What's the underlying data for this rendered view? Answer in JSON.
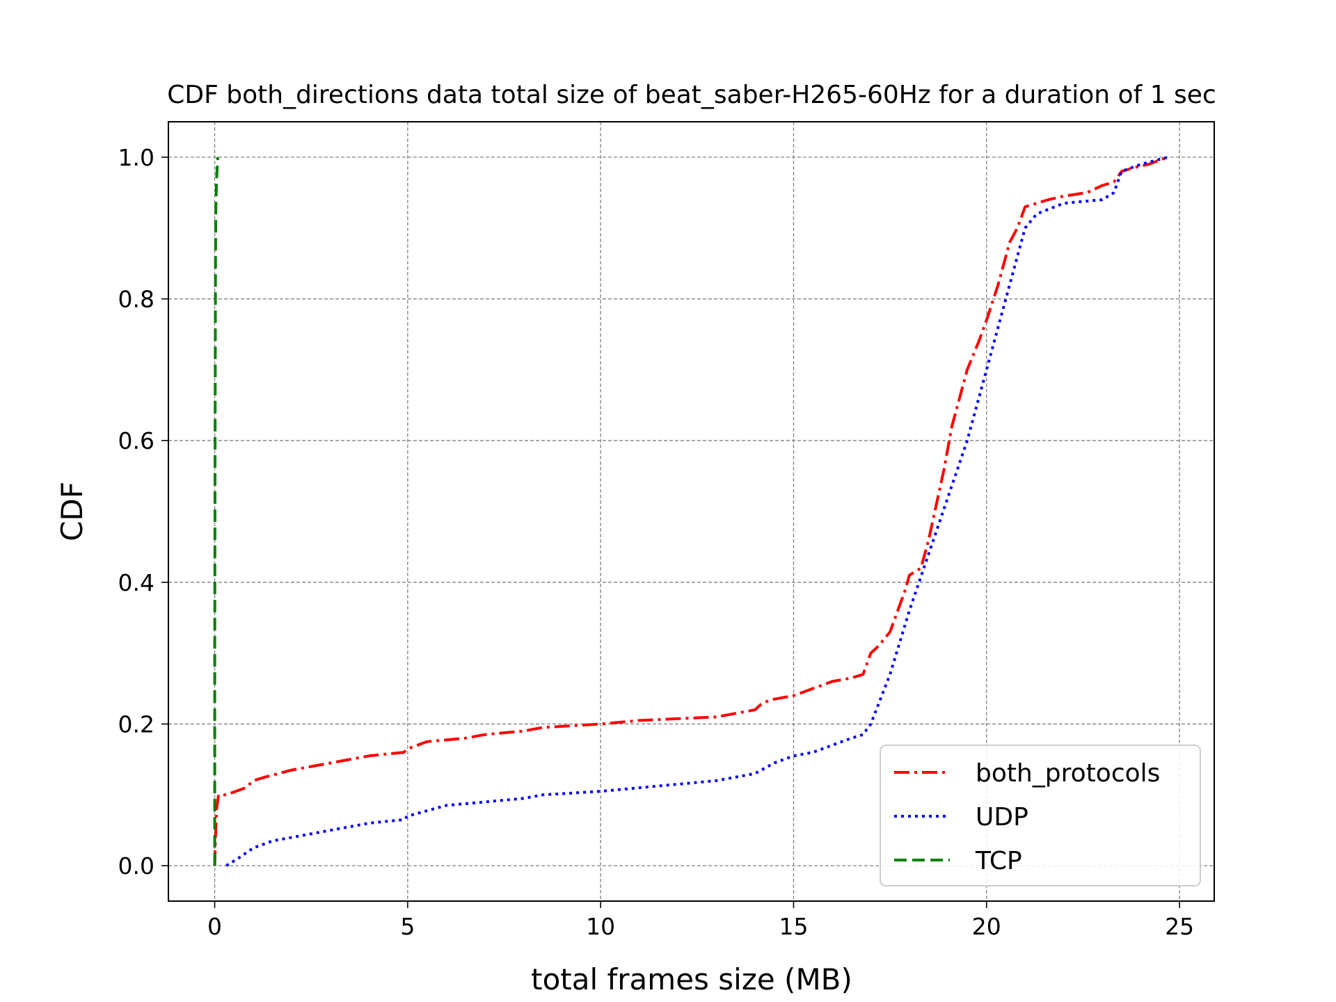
{
  "chart_data": {
    "type": "line",
    "title": "CDF both_directions data total size of beat_saber-H265-60Hz for a duration of 1 sec",
    "xlabel": "total frames size (MB)",
    "ylabel": "CDF",
    "xlim": [
      -1.2,
      25.9
    ],
    "ylim": [
      -0.05,
      1.05
    ],
    "xticks": [
      0,
      5,
      10,
      15,
      20,
      25
    ],
    "yticks": [
      0.0,
      0.2,
      0.4,
      0.6,
      0.8,
      1.0
    ],
    "xtick_labels": [
      "0",
      "5",
      "10",
      "15",
      "20",
      "25"
    ],
    "ytick_labels": [
      "0.0",
      "0.2",
      "0.4",
      "0.6",
      "0.8",
      "1.0"
    ],
    "grid": true,
    "legend_position": "lower right",
    "series": [
      {
        "name": "both_protocols",
        "color": "#ff0000",
        "style": "dashdot",
        "x": [
          0.0,
          0.02,
          0.05,
          0.1,
          0.3,
          0.8,
          1.0,
          1.3,
          2.0,
          3.0,
          3.5,
          4.0,
          4.9,
          5.0,
          5.5,
          6.5,
          7.0,
          8.0,
          8.5,
          10.0,
          11.0,
          13.0,
          14.0,
          14.2,
          14.5,
          15.0,
          15.5,
          16.0,
          16.5,
          16.8,
          17.0,
          17.2,
          17.5,
          17.9,
          18.0,
          18.3,
          18.5,
          18.7,
          18.9,
          19.1,
          19.3,
          19.5,
          19.8,
          20.0,
          20.3,
          20.6,
          20.8,
          21.0,
          21.3,
          21.6,
          22.0,
          22.6,
          23.0,
          23.3,
          23.5,
          23.8,
          24.2,
          24.7
        ],
        "y": [
          0.0,
          0.04,
          0.08,
          0.1,
          0.1,
          0.11,
          0.12,
          0.125,
          0.135,
          0.145,
          0.15,
          0.155,
          0.16,
          0.165,
          0.175,
          0.18,
          0.185,
          0.19,
          0.195,
          0.2,
          0.205,
          0.21,
          0.22,
          0.23,
          0.235,
          0.24,
          0.25,
          0.26,
          0.265,
          0.27,
          0.3,
          0.31,
          0.33,
          0.39,
          0.41,
          0.42,
          0.46,
          0.51,
          0.56,
          0.62,
          0.66,
          0.7,
          0.74,
          0.77,
          0.82,
          0.88,
          0.9,
          0.93,
          0.935,
          0.94,
          0.945,
          0.95,
          0.96,
          0.965,
          0.98,
          0.985,
          0.99,
          1.0
        ]
      },
      {
        "name": "UDP",
        "color": "#0000ff",
        "style": "dotted",
        "x": [
          0.3,
          0.6,
          1.0,
          1.5,
          2.0,
          3.0,
          3.5,
          4.0,
          4.9,
          5.0,
          6.0,
          7.0,
          8.0,
          8.5,
          10.0,
          11.0,
          12.0,
          13.0,
          14.0,
          14.5,
          15.0,
          15.5,
          16.0,
          16.5,
          16.8,
          17.0,
          17.5,
          18.0,
          18.5,
          19.0,
          19.5,
          20.0,
          20.5,
          20.8,
          21.0,
          21.3,
          22.0,
          23.0,
          23.3,
          23.5,
          24.0,
          24.7
        ],
        "y": [
          0.0,
          0.01,
          0.025,
          0.035,
          0.04,
          0.05,
          0.055,
          0.06,
          0.065,
          0.07,
          0.085,
          0.09,
          0.095,
          0.1,
          0.105,
          0.11,
          0.115,
          0.12,
          0.13,
          0.145,
          0.155,
          0.16,
          0.17,
          0.18,
          0.185,
          0.2,
          0.27,
          0.36,
          0.44,
          0.52,
          0.6,
          0.7,
          0.8,
          0.86,
          0.9,
          0.92,
          0.935,
          0.94,
          0.95,
          0.98,
          0.99,
          1.0
        ]
      },
      {
        "name": "TCP",
        "color": "#008000",
        "style": "dashed",
        "x": [
          0.0,
          0.0,
          0.01,
          0.02,
          0.03,
          0.05,
          0.08
        ],
        "y": [
          0.0,
          0.3,
          0.6,
          0.85,
          0.93,
          0.97,
          1.0
        ]
      }
    ]
  }
}
